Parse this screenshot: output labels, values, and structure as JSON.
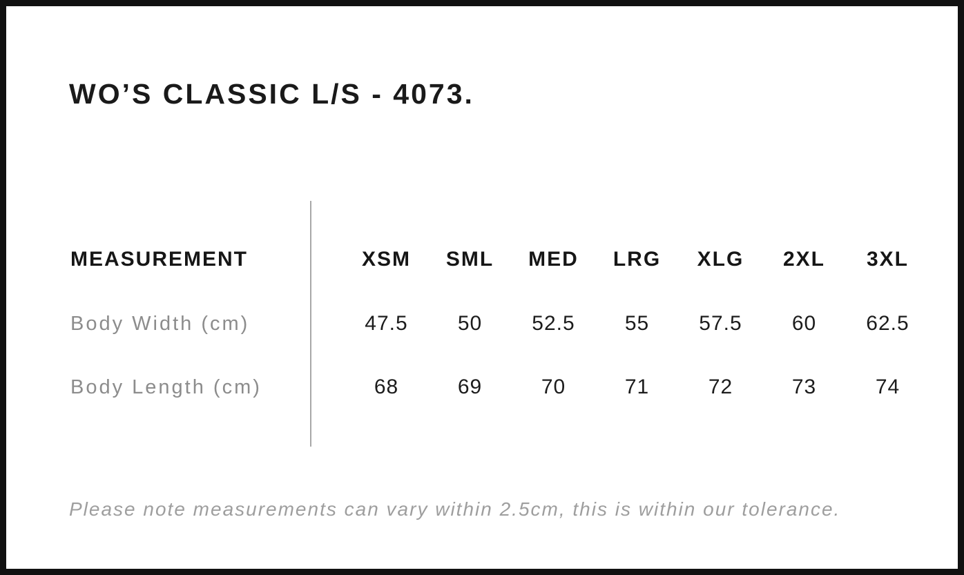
{
  "page": {
    "title": "WO’S CLASSIC L/S - 4073.",
    "note": "Please note measurements can vary within 2.5cm, this is within our tolerance."
  },
  "size_chart": {
    "measurement_header": "MEASUREMENT",
    "sizes": [
      "XSM",
      "SML",
      "MED",
      "LRG",
      "XLG",
      "2XL",
      "3XL"
    ],
    "rows": [
      {
        "label": "Body Width (cm)",
        "values": [
          "47.5",
          "50",
          "52.5",
          "55",
          "57.5",
          "60",
          "62.5"
        ]
      },
      {
        "label": "Body Length (cm)",
        "values": [
          "68",
          "69",
          "70",
          "71",
          "72",
          "73",
          "74"
        ]
      }
    ],
    "tolerance_cm": "2.5"
  },
  "colors": {
    "frame_border": "#111111",
    "heading_text": "#1a1a1a",
    "value_text": "#1c1c1c",
    "label_text": "#8c8c8c",
    "note_text": "#9e9e9e",
    "divider": "#a8a8a8",
    "background": "#ffffff"
  }
}
